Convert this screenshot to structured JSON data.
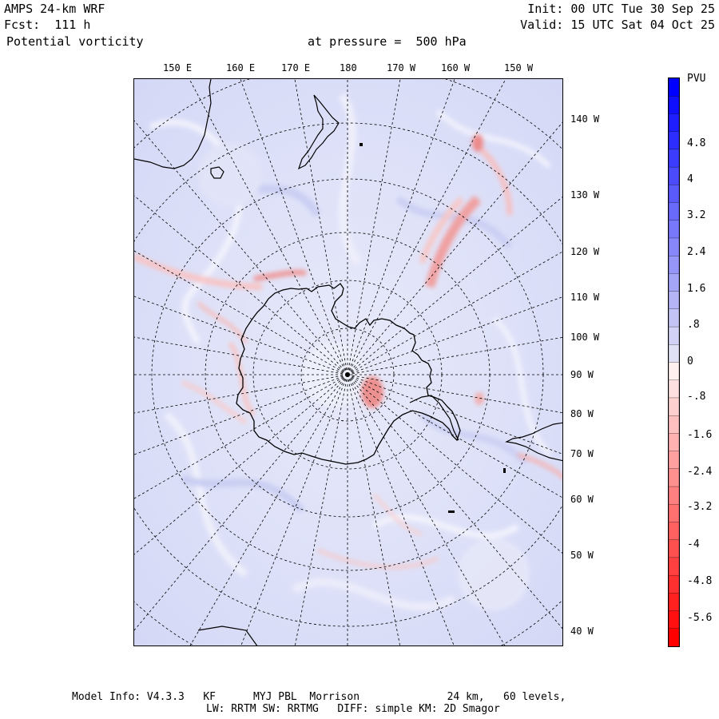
{
  "header": {
    "model": "AMPS 24-km WRF",
    "forecast": "Fcst:  111 h",
    "field": "Potential vorticity",
    "level": "at pressure =  500 hPa",
    "init": "Init: 00 UTC Tue 30 Sep 25",
    "valid": "Valid: 15 UTC Sat 04 Oct 25"
  },
  "map": {
    "top_longitudes": [
      "150 E",
      "160 E",
      "170 E",
      "180",
      "170 W",
      "160 W",
      "150 W"
    ],
    "right_longitudes": [
      "140 W",
      "130 W",
      "120 W",
      "110 W",
      "100 W",
      "90 W",
      "80 W",
      "70 W",
      "60 W",
      "50 W",
      "40 W"
    ]
  },
  "colorbar": {
    "unit": "PVU",
    "ticks": [
      "4.8",
      "4",
      "3.2",
      "2.4",
      "1.6",
      ".8",
      "0",
      "-.8",
      "-1.6",
      "-2.4",
      "-3.2",
      "-4",
      "-4.8",
      "-5.6"
    ],
    "positive_color": "#0000ff",
    "negative_color": "#ff0000"
  },
  "footer": {
    "line1": "Model Info: V4.3.3   KF      MYJ PBL  Morrison              24 km,   60 levels,",
    "line2": "LW: RRTM SW: RRTMG   DIFF: simple KM: 2D Smagor"
  }
}
